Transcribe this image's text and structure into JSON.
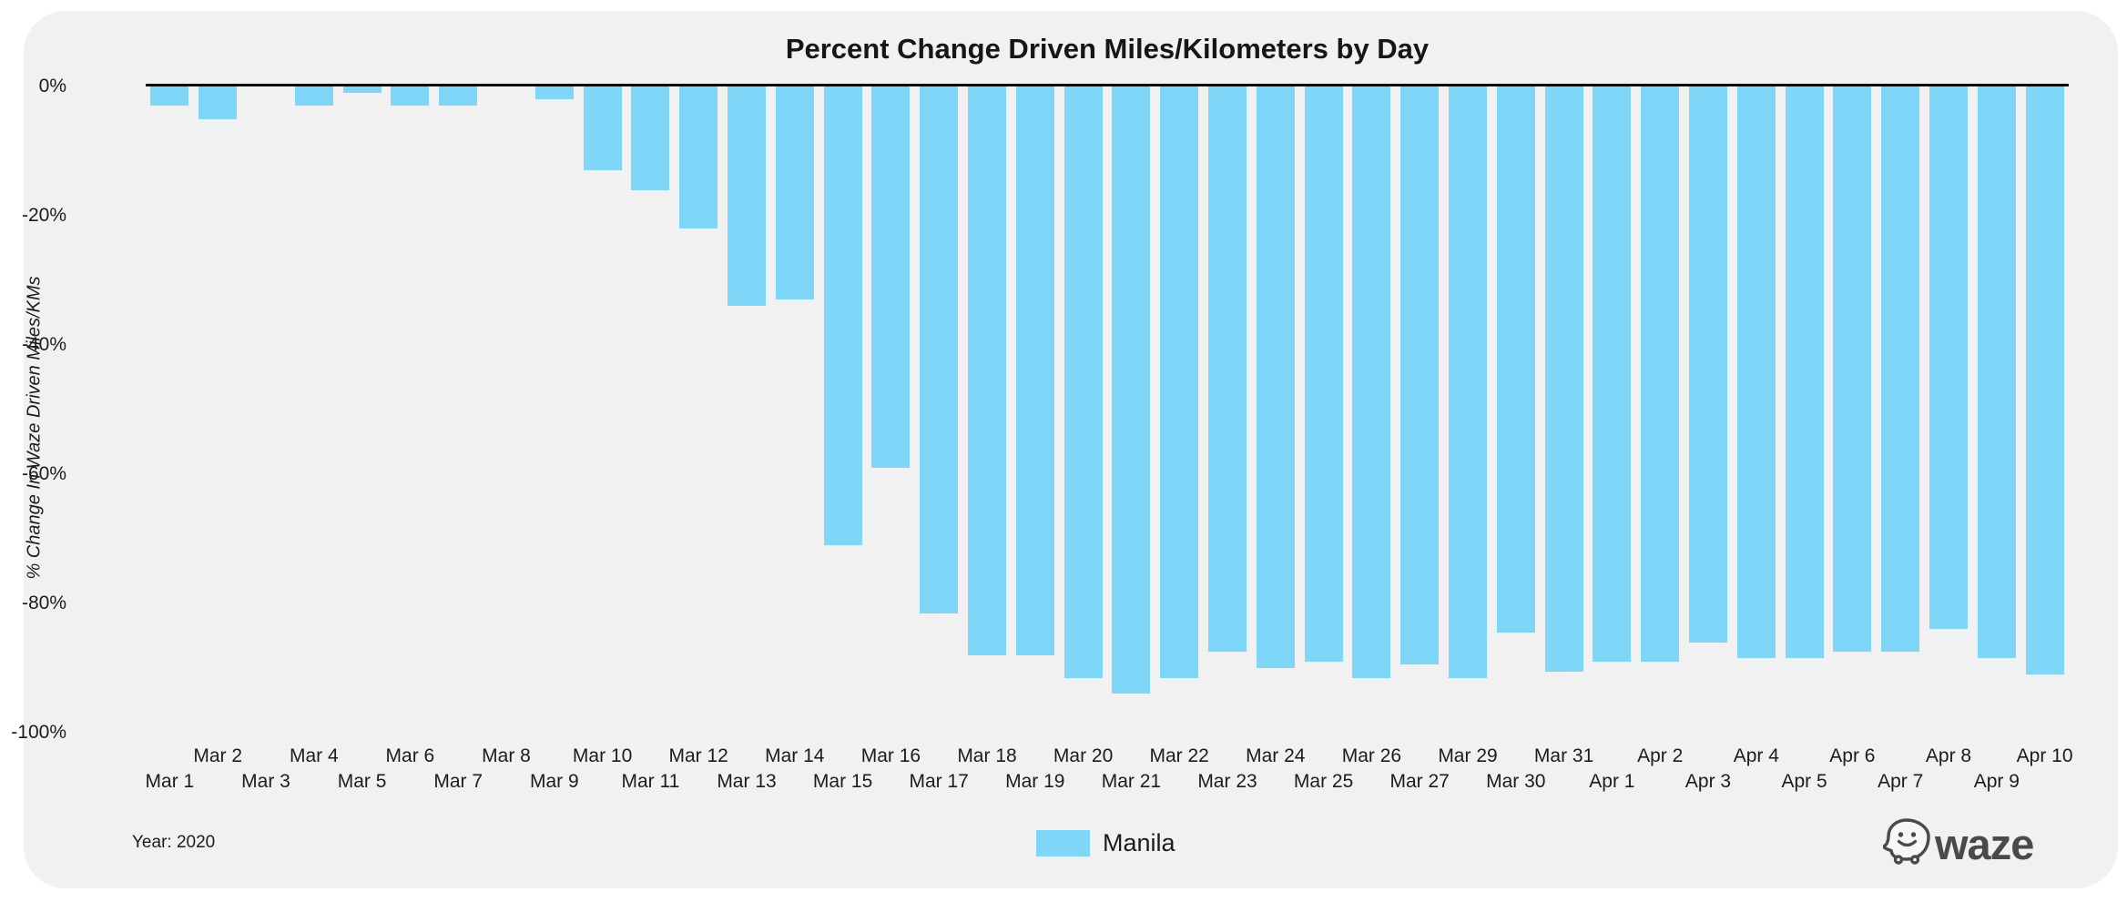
{
  "chart_data": {
    "type": "bar",
    "title": "Percent Change Driven Miles/Kilometers by Day",
    "ylabel": "% Change In Waze Driven Miles/KMs",
    "xlabel": "",
    "ylim": [
      -100,
      0
    ],
    "grid": false,
    "legend_position": "bottom-center",
    "bar_color": "#7ed6f8",
    "yticks": [
      "0%",
      "-20%",
      "-40%",
      "-60%",
      "-80%",
      "-100%"
    ],
    "ytick_values": [
      0,
      -20,
      -40,
      -60,
      -80,
      -100
    ],
    "categories": [
      "Mar 1",
      "Mar 2",
      "Mar 3",
      "Mar 4",
      "Mar 5",
      "Mar 6",
      "Mar 7",
      "Mar 8",
      "Mar 9",
      "Mar 10",
      "Mar 11",
      "Mar 12",
      "Mar 13",
      "Mar 14",
      "Mar 15",
      "Mar 16",
      "Mar 17",
      "Mar 18",
      "Mar 19",
      "Mar 20",
      "Mar 21",
      "Mar 22",
      "Mar 23",
      "Mar 24",
      "Mar 25",
      "Mar 26",
      "Mar 27",
      "Mar 29",
      "Mar 30",
      "Mar 31",
      "Apr 1",
      "Apr 2",
      "Apr 3",
      "Apr 4",
      "Apr 5",
      "Apr 6",
      "Apr 7",
      "Apr 8",
      "Apr 9",
      "Apr 10"
    ],
    "series": [
      {
        "name": "Manila",
        "values": [
          -3,
          -5,
          0,
          -3,
          -1,
          -3,
          -3,
          0,
          -2,
          -13,
          -16,
          -22,
          -34,
          -33,
          -71,
          -59,
          -81.5,
          -88,
          -88,
          -91.5,
          -94,
          -91.5,
          -87.5,
          -90,
          -89,
          -91.5,
          -89.5,
          -91.5,
          -84.5,
          -90.5,
          -89,
          -89,
          -86,
          -88.5,
          -88.5,
          -87.5,
          -87.5,
          -84,
          -88.5,
          -91
        ]
      }
    ],
    "notes": "Mar 28 is absent from the x-axis; Mar 3 and Mar 8 have zero-height bars"
  },
  "legend": {
    "label": "Manila",
    "color": "#7ed6f8"
  },
  "footer": {
    "year_note": "Year: 2020",
    "logo_text": "waze"
  }
}
